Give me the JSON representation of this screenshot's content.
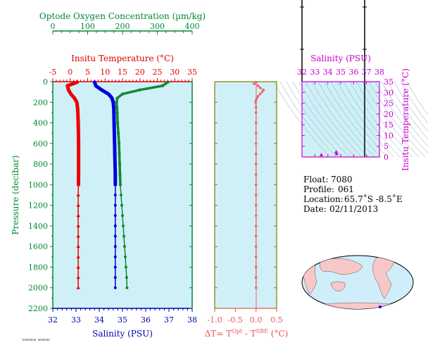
{
  "chart_data": [
    {
      "type": "line",
      "name_hint": "main-profile",
      "y_axis": {
        "label": "Pressure (decibar)",
        "range": [
          2200,
          0
        ],
        "ticks": [
          0,
          200,
          400,
          600,
          800,
          1000,
          1200,
          1400,
          1600,
          1800,
          2000,
          2200
        ]
      },
      "oxygen_axis": {
        "label": "Optode Oxygen Concentration (µm/kg)",
        "range": [
          0,
          400
        ],
        "ticks": [
          0,
          100,
          200,
          300,
          400
        ],
        "color": "#008833"
      },
      "temperature_axis": {
        "label": "Insitu Temperature (°C)",
        "range": [
          -5,
          35
        ],
        "ticks": [
          -5,
          0,
          5,
          10,
          15,
          20,
          25,
          30,
          35
        ],
        "color": "#dd0000"
      },
      "salinity_axis": {
        "label": "Salinity (PSU)",
        "range": [
          32,
          38
        ],
        "ticks": [
          32,
          33,
          34,
          35,
          36,
          37,
          38
        ],
        "color": "#0000aa"
      },
      "series": [
        {
          "kind": "temperature",
          "color": "#ee0000",
          "pressure": [
            5,
            40,
            80,
            120,
            160,
            200,
            250,
            300,
            400,
            500,
            600,
            700,
            800,
            900,
            1000,
            1100,
            1200,
            1300,
            1400,
            1500,
            1600,
            1700,
            1800,
            1900,
            2000
          ],
          "values": [
            2.0,
            -0.8,
            -0.5,
            0.2,
            1.2,
            1.9,
            2.1,
            2.2,
            2.3,
            2.35,
            2.4,
            2.4,
            2.4,
            2.4,
            2.35,
            2.3,
            2.3,
            2.3,
            2.3,
            2.3,
            2.3,
            2.3,
            2.3,
            2.3,
            2.3
          ]
        },
        {
          "kind": "salinity",
          "color": "#0000dd",
          "pressure": [
            5,
            40,
            80,
            120,
            160,
            200,
            250,
            300,
            400,
            500,
            600,
            700,
            800,
            900,
            1000,
            1100,
            1200,
            1300,
            1400,
            1500,
            1600,
            1700,
            1800,
            1900,
            2000
          ],
          "values": [
            33.8,
            33.85,
            34.1,
            34.4,
            34.55,
            34.6,
            34.62,
            34.63,
            34.64,
            34.65,
            34.66,
            34.67,
            34.68,
            34.69,
            34.69,
            34.69,
            34.69,
            34.69,
            34.69,
            34.69,
            34.69,
            34.69,
            34.69,
            34.69,
            34.69
          ]
        },
        {
          "kind": "oxygen",
          "color": "#118833",
          "pressure": [
            5,
            40,
            80,
            120,
            160,
            200,
            250,
            300,
            400,
            500,
            600,
            700,
            800,
            900,
            1000,
            1100,
            1200,
            1300,
            1400,
            1500,
            1600,
            1700,
            1800,
            1900,
            2000
          ],
          "values": [
            330,
            315,
            250,
            200,
            185,
            183,
            184,
            185,
            186,
            188,
            190,
            191,
            192,
            193,
            194,
            196,
            198,
            200,
            202,
            204,
            206,
            208,
            210,
            212,
            213
          ]
        }
      ],
      "footnote": "nnnnnnnn nnnnnnn"
    },
    {
      "type": "scatter",
      "name_hint": "delta-t",
      "x_axis": {
        "range": [
          -1.0,
          0.5
        ],
        "ticks": [
          -1.0,
          -0.5,
          0.0,
          0.5
        ],
        "tick_labels": [
          "-1.0",
          "-0.5",
          "0.0",
          "0.5"
        ],
        "color": "#ee5555"
      },
      "xlabel_parts": {
        "prefix": "ΔT= T",
        "sup1": "Opt",
        "mid": " - T",
        "sup2": "SBE",
        "suffix": " (°C)"
      },
      "series": [
        {
          "color": "#ee6666",
          "pressure": [
            5,
            20,
            40,
            60,
            80,
            100,
            120,
            140,
            160,
            180,
            200,
            250,
            300,
            400,
            500,
            600,
            700,
            800,
            900,
            1000,
            1100,
            1200,
            1300,
            1400,
            1500,
            1600,
            1700,
            1800,
            1900,
            2000
          ],
          "values": [
            0.0,
            -0.05,
            0.05,
            0.1,
            0.18,
            0.15,
            0.1,
            0.05,
            0.02,
            0.0,
            -0.01,
            0.0,
            0.0,
            0.0,
            0.0,
            0.0,
            0.0,
            0.0,
            0.0,
            0.0,
            0.0,
            0.0,
            0.0,
            0.0,
            0.0,
            0.0,
            0.0,
            0.0,
            0.0,
            0.0
          ]
        }
      ]
    },
    {
      "type": "scatter",
      "name_hint": "ts-diagram",
      "x_axis": {
        "label": "Salinity (PSU)",
        "range": [
          32,
          38
        ],
        "ticks": [
          32,
          33,
          34,
          35,
          36,
          37,
          38
        ],
        "color": "#cc00cc"
      },
      "y_axis": {
        "label": "Insitu Temperature (°C)",
        "range": [
          0,
          35
        ],
        "ticks": [
          0,
          5,
          10,
          15,
          20,
          25,
          30,
          35
        ],
        "color": "#cc00cc"
      },
      "points": [
        {
          "s": 33.5,
          "t": 1.0
        },
        {
          "s": 34.7,
          "t": 1.5
        },
        {
          "s": 34.65,
          "t": 2.3
        }
      ]
    }
  ],
  "info": {
    "float_label": "Float:",
    "float_value": "7080",
    "profile_label": "Profile:",
    "profile_value": "061",
    "location_label": "Location:",
    "location_value": "65.7˚S  -8.5˚E",
    "date_label": "Date:",
    "date_value": "02/11/2013"
  }
}
